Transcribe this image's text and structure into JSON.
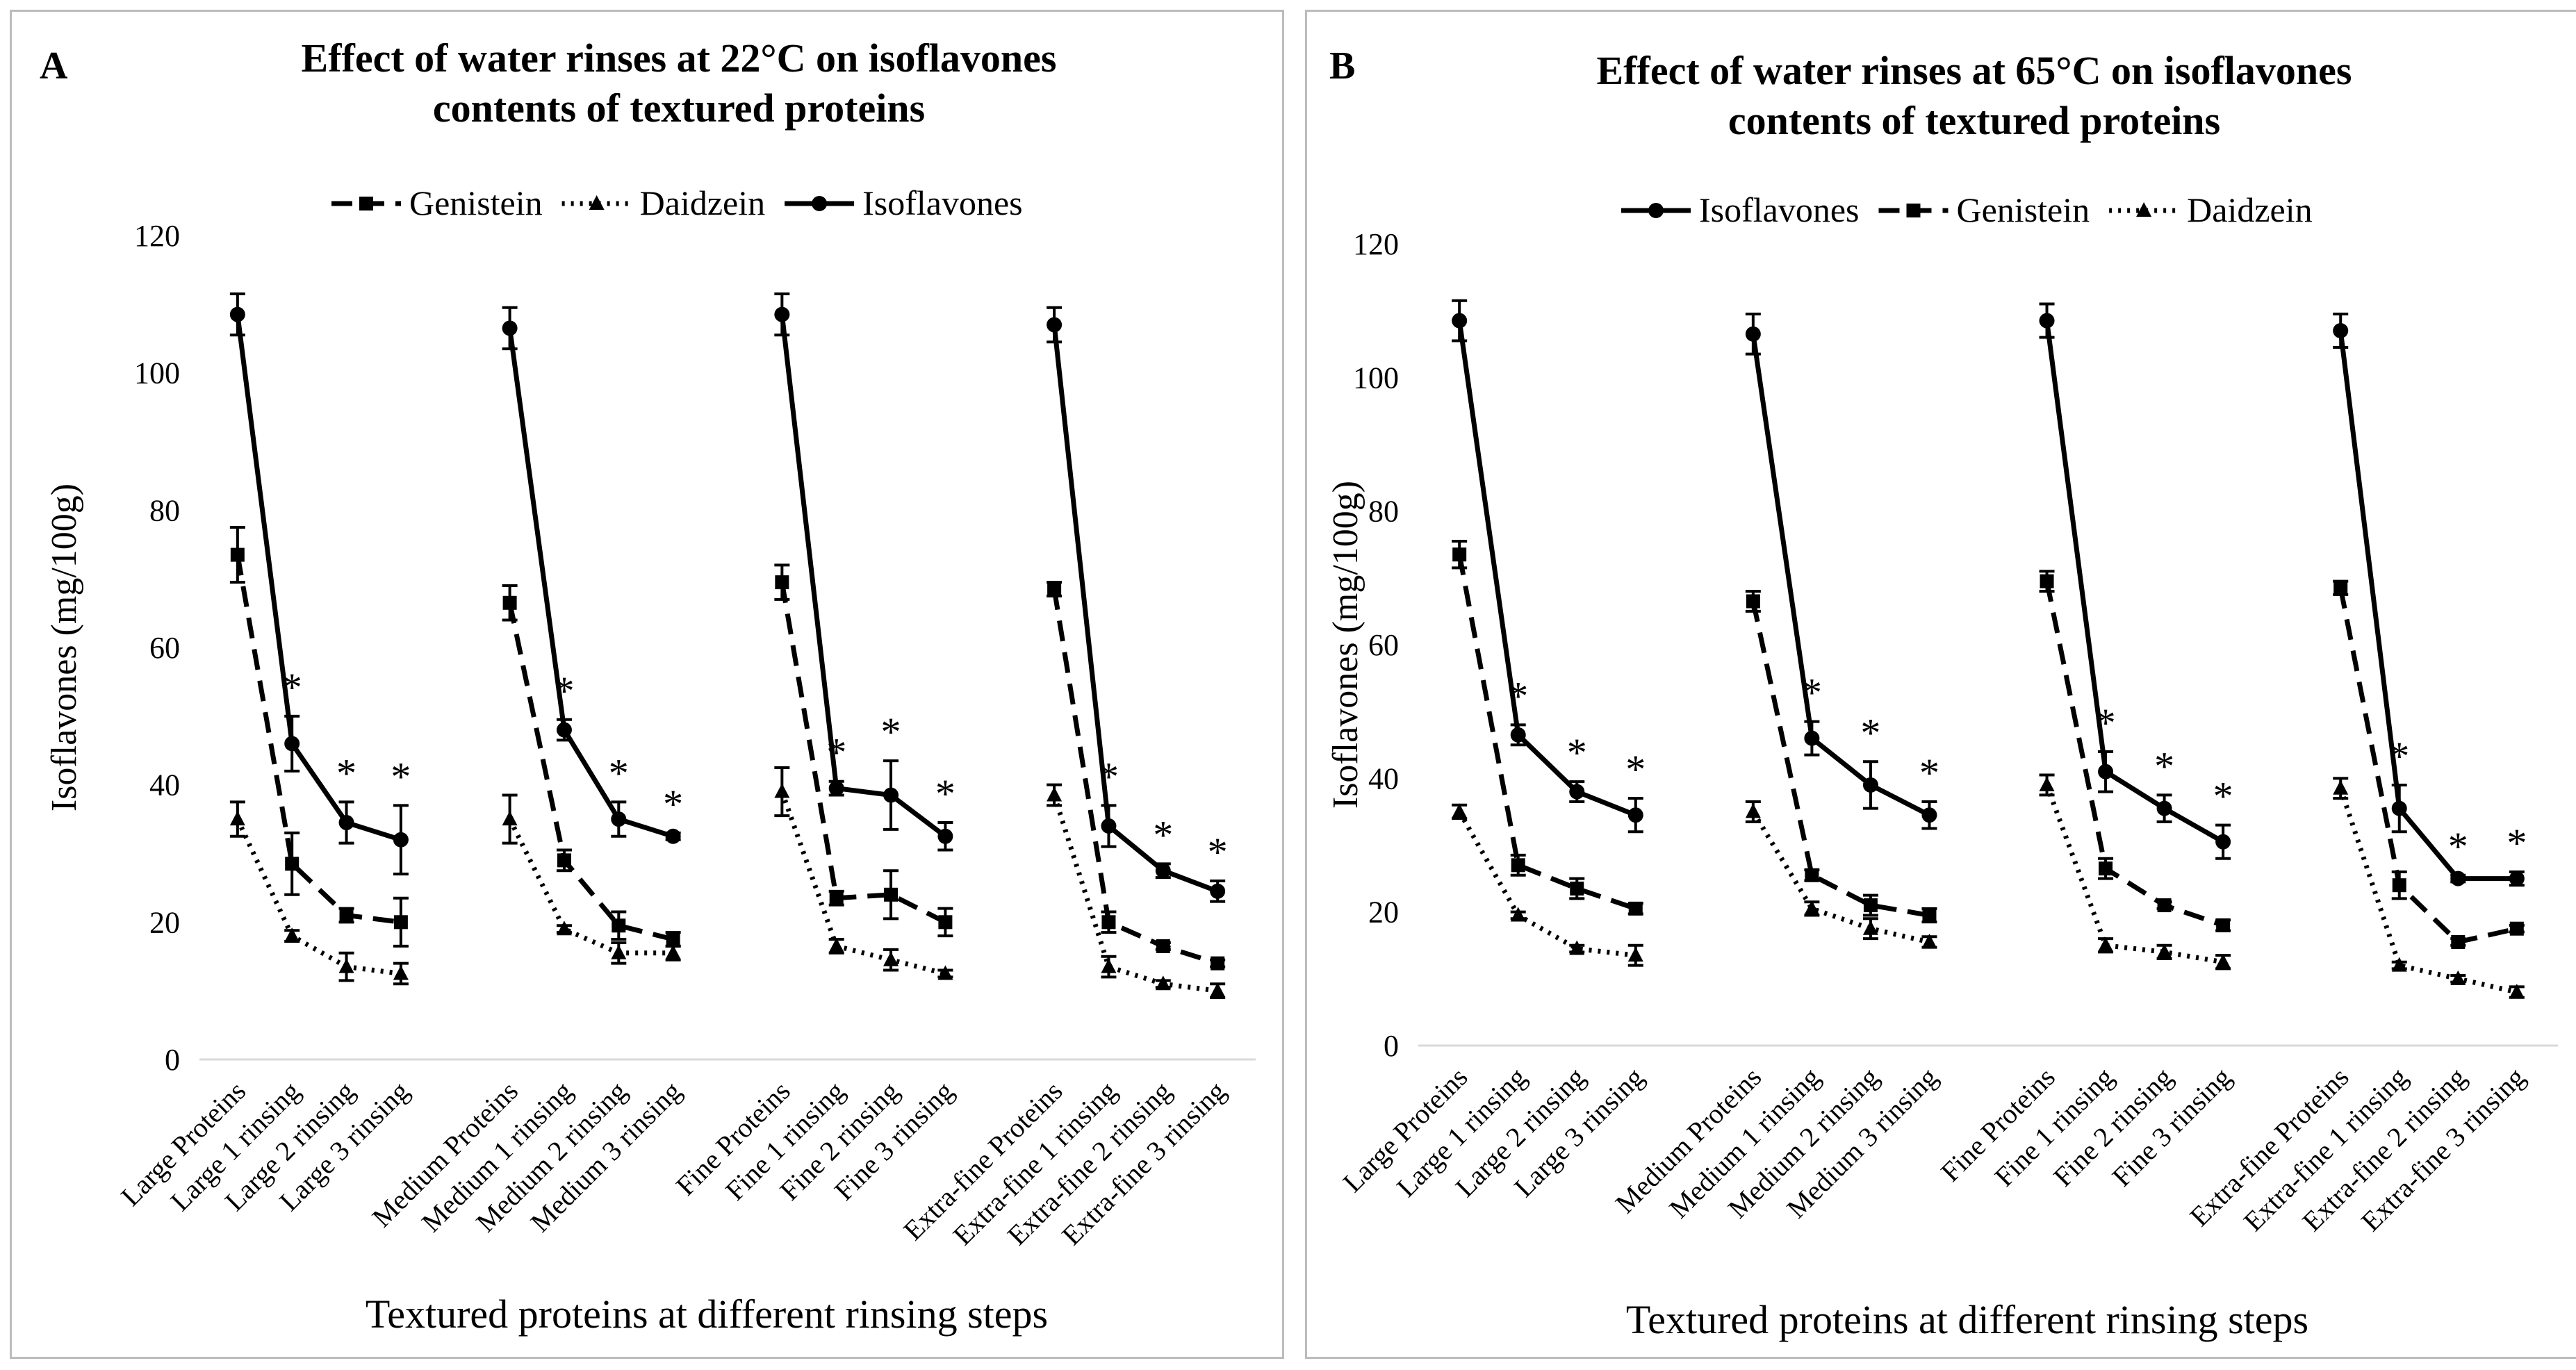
{
  "chart_data": [
    {
      "type": "line",
      "panel_label": "A",
      "title": [
        "Effect of water rinses at 22°C on isoflavones",
        "contents of textured proteins"
      ],
      "xlabel": "Textured proteins at different rinsing steps",
      "ylabel": "Isoflavones (mg/100g)",
      "ylim": [
        0,
        120
      ],
      "yticks": [
        "0",
        "20",
        "40",
        "60",
        "80",
        "100",
        "120"
      ],
      "legend_order": [
        "Genistein",
        "Daidzein",
        "Isoflavones"
      ],
      "groups": [
        {
          "categories": [
            "Large Proteins",
            "Large 1 rinsing",
            "Large 2 rinsing",
            "Large 3 rinsing"
          ],
          "series": {
            "Isoflavones": {
              "values": [
                108.5,
                46,
                34.5,
                32
              ],
              "errors": [
                3,
                4,
                3,
                5
              ]
            },
            "Genistein": {
              "values": [
                73.5,
                28.5,
                21,
                20
              ],
              "errors": [
                4,
                4.5,
                1,
                3.5
              ]
            },
            "Daidzein": {
              "values": [
                35,
                18,
                13.5,
                12.5
              ],
              "errors": [
                2.5,
                0.8,
                2,
                1.5
              ]
            }
          },
          "significant": [
            false,
            true,
            true,
            true
          ]
        },
        {
          "categories": [
            "Medium Proteins",
            "Medium 1 rinsing",
            "Medium 2 rinsing",
            "Medium 3 rinsing"
          ],
          "series": {
            "Isoflavones": {
              "values": [
                106.5,
                48,
                35,
                32.5
              ],
              "errors": [
                3,
                1.5,
                2.5,
                0.5
              ]
            },
            "Genistein": {
              "values": [
                66.5,
                29,
                19.5,
                17.5
              ],
              "errors": [
                2.5,
                1.5,
                2,
                1
              ]
            },
            "Daidzein": {
              "values": [
                35,
                19,
                15.5,
                15.5
              ],
              "errors": [
                3.5,
                0.5,
                1.5,
                1
              ]
            }
          },
          "significant": [
            false,
            true,
            true,
            true
          ]
        },
        {
          "categories": [
            "Fine Proteins",
            "Fine 1 rinsing",
            "Fine 2 rinsing",
            "Fine 3 rinsing"
          ],
          "series": {
            "Isoflavones": {
              "values": [
                108.5,
                39.5,
                38.5,
                32.5
              ],
              "errors": [
                3,
                1,
                5,
                2
              ]
            },
            "Genistein": {
              "values": [
                69.5,
                23.5,
                24,
                20
              ],
              "errors": [
                2.5,
                1,
                3.5,
                2
              ]
            },
            "Daidzein": {
              "values": [
                39,
                16.5,
                14.5,
                12.5
              ],
              "errors": [
                3.5,
                1,
                1.5,
                0.5
              ]
            }
          },
          "significant": [
            false,
            true,
            true,
            true
          ]
        },
        {
          "categories": [
            "Extra-fine Proteins",
            "Extra-fine 1 rinsing",
            "Extra-fine 2 rinsing",
            "Extra-fine 3 rinsing"
          ],
          "series": {
            "Isoflavones": {
              "values": [
                107,
                34,
                27.5,
                24.5
              ],
              "errors": [
                2.5,
                3,
                1,
                1.5
              ]
            },
            "Genistein": {
              "values": [
                68.5,
                20,
                16.5,
                14
              ],
              "errors": [
                1,
                1.5,
                0.5,
                0.5
              ]
            },
            "Daidzein": {
              "values": [
                38.5,
                13.5,
                11,
                10
              ],
              "errors": [
                1.5,
                1.5,
                0.5,
                1
              ]
            }
          },
          "significant": [
            false,
            true,
            true,
            true
          ]
        }
      ]
    },
    {
      "type": "line",
      "panel_label": "B",
      "title": [
        "Effect of water rinses at 65°C on isoflavones",
        "contents of textured proteins"
      ],
      "xlabel": "Textured proteins at different rinsing steps",
      "ylabel": "Isoflavones (mg/100g)",
      "ylim": [
        0,
        120
      ],
      "yticks": [
        "0",
        "20",
        "40",
        "60",
        "80",
        "100",
        "120"
      ],
      "legend_order": [
        "Isoflavones",
        "Genistein",
        "Daidzein"
      ],
      "groups": [
        {
          "categories": [
            "Large Proteins",
            "Large 1 rinsing",
            "Large 2 rinsing",
            "Large 3 rinsing"
          ],
          "series": {
            "Isoflavones": {
              "values": [
                108.5,
                46.5,
                38,
                34.5
              ],
              "errors": [
                3,
                1.5,
                1.5,
                2.5
              ]
            },
            "Genistein": {
              "values": [
                73.5,
                27,
                23.5,
                20.5
              ],
              "errors": [
                2,
                1.5,
                1.5,
                0.8
              ]
            },
            "Daidzein": {
              "values": [
                35,
                19.5,
                14.5,
                13.5
              ],
              "errors": [
                1,
                0.5,
                0.5,
                1.5
              ]
            }
          },
          "significant": [
            false,
            true,
            true,
            true
          ]
        },
        {
          "categories": [
            "Medium Proteins",
            "Medium 1 rinsing",
            "Medium 2 rinsing",
            "Medium 3 rinsing"
          ],
          "series": {
            "Isoflavones": {
              "values": [
                106.5,
                46,
                39,
                34.5
              ],
              "errors": [
                3,
                2.5,
                3.5,
                2
              ]
            },
            "Genistein": {
              "values": [
                66.5,
                25.5,
                21,
                19.5
              ],
              "errors": [
                1.5,
                0.8,
                1.5,
                1
              ]
            },
            "Daidzein": {
              "values": [
                35,
                20.5,
                17.5,
                15.5
              ],
              "errors": [
                1.5,
                1,
                1.5,
                0.8
              ]
            }
          },
          "significant": [
            false,
            true,
            true,
            true
          ]
        },
        {
          "categories": [
            "Fine Proteins",
            "Fine 1 rinsing",
            "Fine 2 rinsing",
            "Fine 3 rinsing"
          ],
          "series": {
            "Isoflavones": {
              "values": [
                108.5,
                41,
                35.5,
                30.5
              ],
              "errors": [
                2.5,
                3,
                2,
                2.5
              ]
            },
            "Genistein": {
              "values": [
                69.5,
                26.5,
                21,
                18
              ],
              "errors": [
                1.5,
                1.5,
                0.5,
                0.8
              ]
            },
            "Daidzein": {
              "values": [
                39,
                15,
                14,
                12.5
              ],
              "errors": [
                1.5,
                1,
                1,
                1
              ]
            }
          },
          "significant": [
            false,
            true,
            true,
            true
          ]
        },
        {
          "categories": [
            "Extra-fine Proteins",
            "Extra-fine 1 rinsing",
            "Extra-fine 2 rinsing",
            "Extra-fine 3 rinsing"
          ],
          "series": {
            "Isoflavones": {
              "values": [
                107,
                35.5,
                25,
                25
              ],
              "errors": [
                2.5,
                3.5,
                0.5,
                1
              ]
            },
            "Genistein": {
              "values": [
                68.5,
                24,
                15.5,
                17.5
              ],
              "errors": [
                1,
                2,
                0.5,
                0.5
              ]
            },
            "Daidzein": {
              "values": [
                38.5,
                12,
                10,
                8
              ],
              "errors": [
                1.5,
                0.5,
                0.5,
                0.8
              ]
            }
          },
          "significant": [
            false,
            true,
            true,
            true
          ]
        }
      ]
    }
  ]
}
